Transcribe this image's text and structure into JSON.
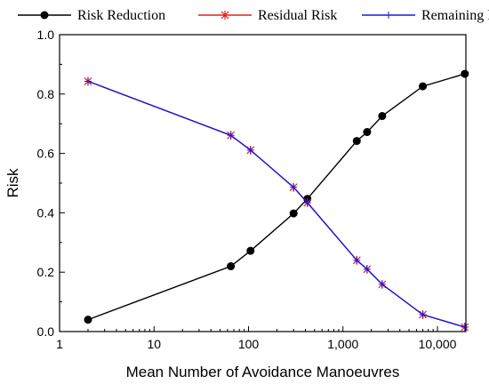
{
  "chart_data": {
    "type": "line",
    "xlabel": "Mean Number of Avoidance Manoeuvres",
    "ylabel": "Risk",
    "xscale": "log",
    "xlim": [
      1,
      20000
    ],
    "ylim": [
      0,
      1.0
    ],
    "x_ticks": [
      1,
      10,
      100,
      1000,
      10000
    ],
    "x_tick_labels": [
      "1",
      "10",
      "100",
      "1,000",
      "10,000"
    ],
    "y_ticks": [
      0,
      0.2,
      0.4,
      0.6,
      0.8,
      1.0
    ],
    "y_tick_labels": [
      "0.0",
      "0.2",
      "0.4",
      "0.6",
      "0.8",
      "1.0"
    ],
    "legend_position": "top",
    "series": [
      {
        "name": "Risk Reduction",
        "color": "#000000",
        "marker": "circle",
        "x": [
          2,
          65,
          105,
          300,
          420,
          1400,
          1800,
          2600,
          7000,
          19500
        ],
        "y": [
          0.04,
          0.22,
          0.272,
          0.398,
          0.447,
          0.642,
          0.672,
          0.726,
          0.826,
          0.868
        ]
      },
      {
        "name": "Residual Risk",
        "color": "#e0201c",
        "marker": "star",
        "x": [
          2,
          65,
          105,
          300,
          420,
          1400,
          1800,
          2600,
          7000,
          19500
        ],
        "y": [
          0.843,
          0.661,
          0.611,
          0.486,
          0.434,
          0.24,
          0.21,
          0.159,
          0.057,
          0.015
        ]
      },
      {
        "name": "Remaining Risk",
        "color": "#1818e0",
        "marker": "plus",
        "x": [
          2,
          65,
          105,
          300,
          420,
          1400,
          1800,
          2600,
          7000,
          19500
        ],
        "y": [
          0.843,
          0.661,
          0.611,
          0.486,
          0.434,
          0.24,
          0.21,
          0.159,
          0.057,
          0.015
        ]
      }
    ]
  }
}
